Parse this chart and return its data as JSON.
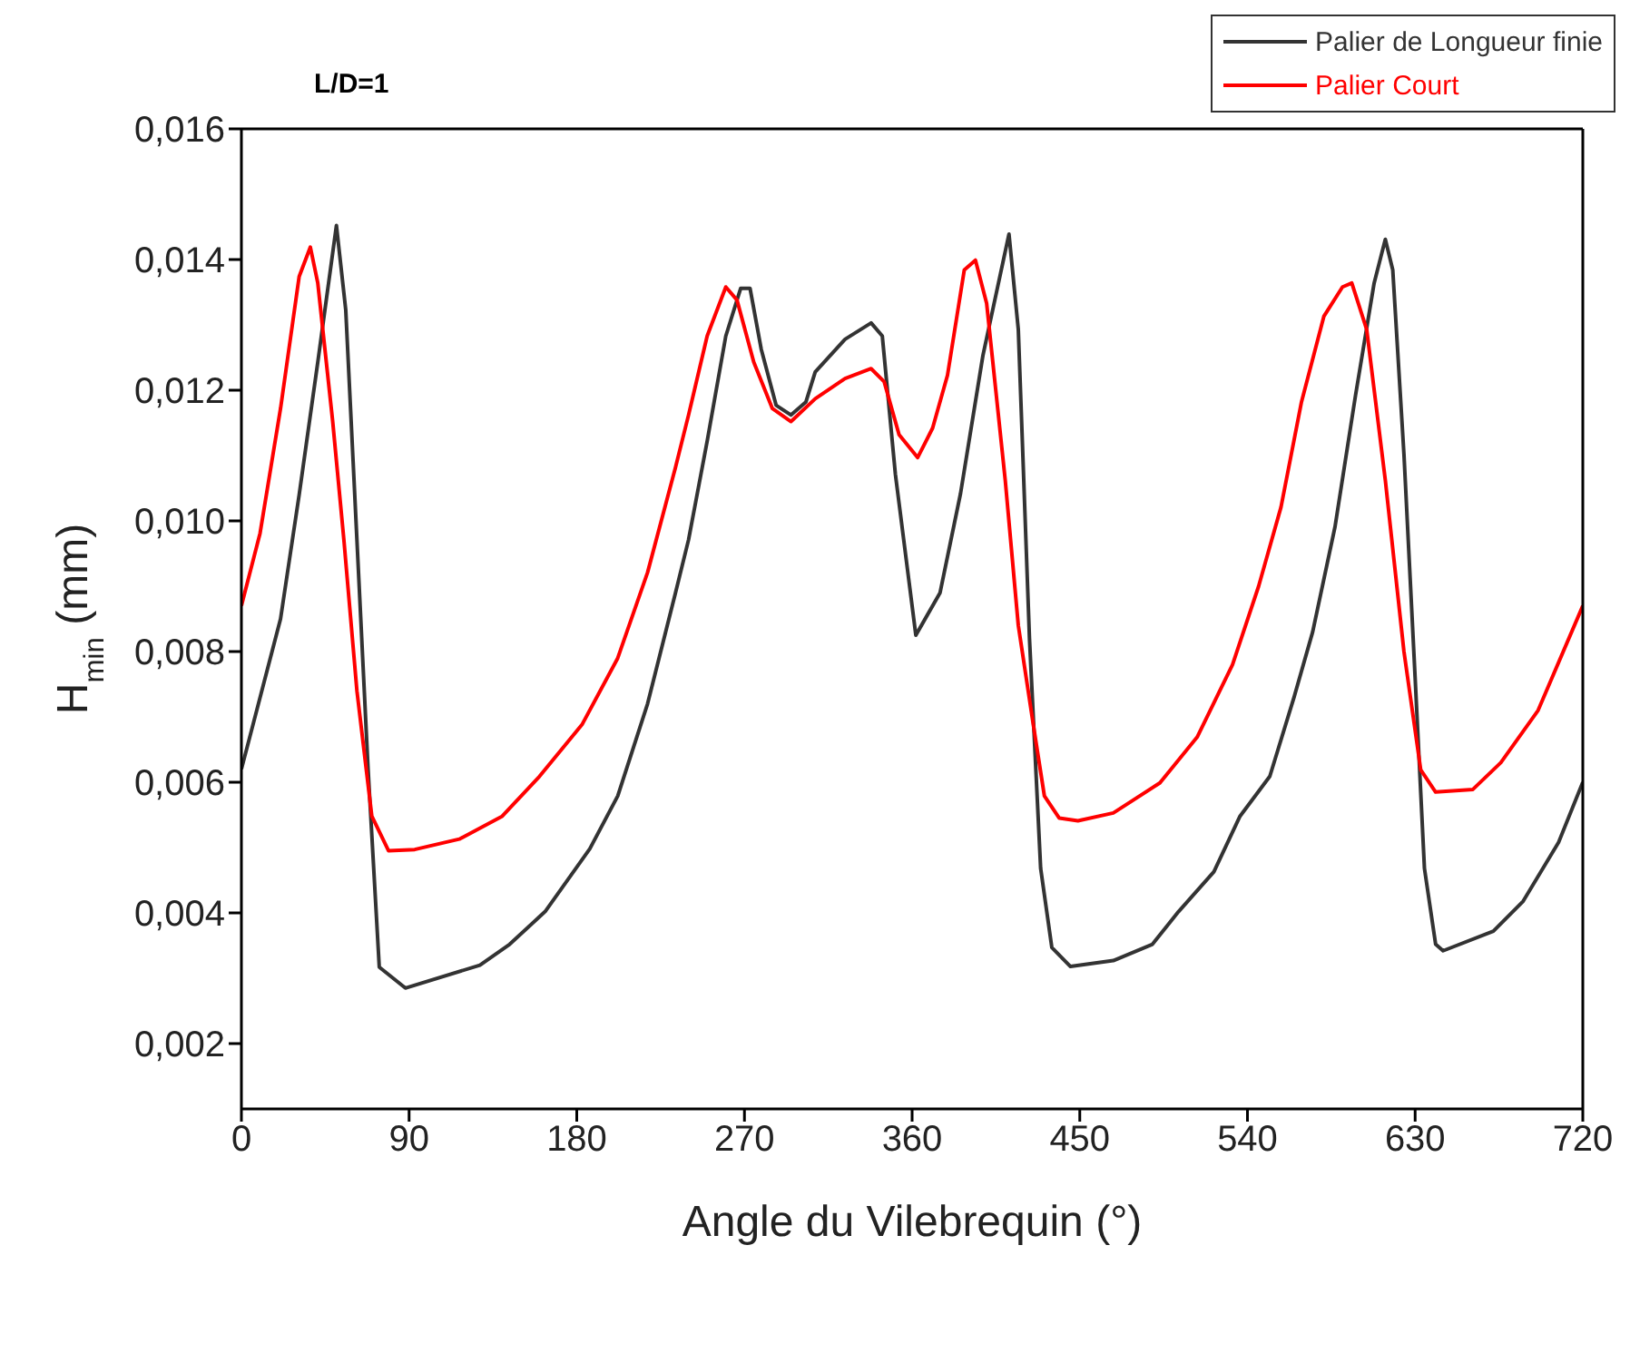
{
  "chart_data": {
    "type": "line",
    "title": "L/D=1",
    "xlabel": "Angle du Vilebrequin (°)",
    "ylabel": "H$_{min}$ (mm)",
    "xlim": [
      0,
      720
    ],
    "xticks": [
      0,
      90,
      180,
      270,
      360,
      450,
      540,
      630,
      720
    ],
    "ylim": [
      0.001,
      0.016
    ],
    "yticks": [
      {
        "value": 0.002,
        "label": "0,002"
      },
      {
        "value": 0.004,
        "label": "0,004"
      },
      {
        "value": 0.006,
        "label": "0,006"
      },
      {
        "value": 0.008,
        "label": "0,008"
      },
      {
        "value": 0.01,
        "label": "0,010"
      },
      {
        "value": 0.012,
        "label": "0,012"
      },
      {
        "value": 0.014,
        "label": "0,014"
      },
      {
        "value": 0.016,
        "label": "0,016"
      }
    ],
    "legend": "top right",
    "marker": "none",
    "line_style": "solid",
    "series": [
      {
        "name": "Palier de Longueur finie",
        "color": "#333333",
        "x": [
          0,
          21,
          31,
          41,
          51,
          56,
          62,
          68,
          74,
          88,
          128,
          144,
          163,
          187,
          202,
          218,
          233,
          240,
          250,
          260,
          268,
          273,
          279,
          287,
          295,
          303,
          308,
          324,
          338,
          344,
          351,
          362,
          375,
          386,
          398,
          412,
          417,
          423,
          429,
          435,
          445,
          468,
          489,
          503,
          522,
          536,
          552,
          565,
          575,
          587,
          598,
          608,
          614,
          618,
          624,
          630,
          635,
          641,
          645,
          672,
          688,
          707,
          720
        ],
        "values": [
          0.0062,
          0.0085,
          0.0104,
          0.01243,
          0.01452,
          0.01323,
          0.00971,
          0.0062,
          0.00317,
          0.00285,
          0.0032,
          0.00352,
          0.00402,
          0.00498,
          0.00579,
          0.0072,
          0.0089,
          0.00971,
          0.01122,
          0.01283,
          0.01356,
          0.01356,
          0.01263,
          0.01177,
          0.01162,
          0.01182,
          0.01228,
          0.01278,
          0.01303,
          0.01283,
          0.01072,
          0.00825,
          0.0089,
          0.01042,
          0.01253,
          0.01439,
          0.01293,
          0.0082,
          0.00468,
          0.00347,
          0.00318,
          0.00327,
          0.00352,
          0.00402,
          0.00463,
          0.00548,
          0.00609,
          0.0073,
          0.0083,
          0.00991,
          0.01192,
          0.01364,
          0.01431,
          0.01384,
          0.01102,
          0.0076,
          0.00468,
          0.00352,
          0.00342,
          0.00372,
          0.00418,
          0.00508,
          0.006
        ]
      },
      {
        "name": "Palier Court",
        "color": "#ff0000",
        "x": [
          0,
          10,
          21,
          31,
          37,
          41,
          49,
          55,
          62,
          70,
          79,
          93,
          117,
          140,
          160,
          183,
          202,
          218,
          233,
          240,
          250,
          260,
          266,
          275,
          285,
          295,
          308,
          324,
          338,
          345,
          353,
          363,
          371,
          379,
          388,
          394,
          400,
          410,
          417,
          425,
          431,
          439,
          449,
          468,
          493,
          513,
          532,
          546,
          558,
          569,
          581,
          591,
          596,
          604,
          614,
          624,
          633,
          641,
          661,
          676,
          696,
          720
        ],
        "values": [
          0.0087,
          0.00981,
          0.01172,
          0.01374,
          0.01419,
          0.01364,
          0.01152,
          0.00971,
          0.0074,
          0.00548,
          0.00495,
          0.00497,
          0.00513,
          0.00548,
          0.00609,
          0.00689,
          0.0079,
          0.00921,
          0.01082,
          0.01162,
          0.01283,
          0.01358,
          0.01338,
          0.01243,
          0.01172,
          0.01152,
          0.01187,
          0.01218,
          0.01233,
          0.01213,
          0.01132,
          0.01097,
          0.01142,
          0.01223,
          0.01384,
          0.01399,
          0.01333,
          0.01062,
          0.0084,
          0.00689,
          0.00579,
          0.00545,
          0.00541,
          0.00553,
          0.00599,
          0.00669,
          0.0078,
          0.009,
          0.01021,
          0.01182,
          0.01313,
          0.01358,
          0.01364,
          0.01293,
          0.01062,
          0.008,
          0.00619,
          0.00585,
          0.00589,
          0.0063,
          0.0071,
          0.0087
        ]
      }
    ]
  }
}
